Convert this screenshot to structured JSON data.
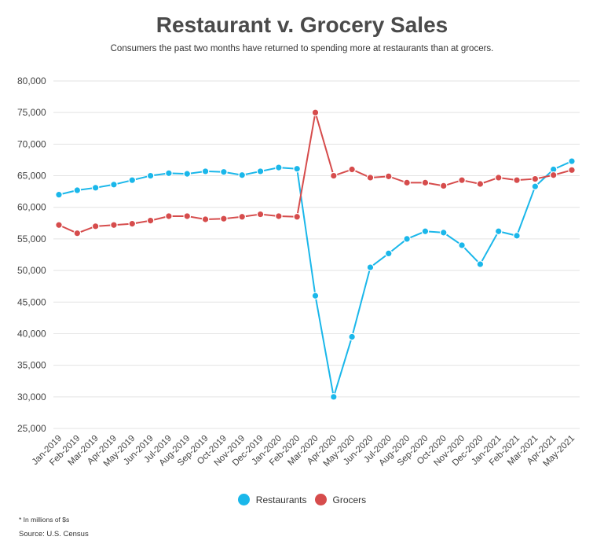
{
  "title": "Restaurant v. Grocery Sales",
  "subtitle": "Consumers the past two months have returned to spending more at restaurants than at grocers.",
  "footnote": "* In millions of $s",
  "source": "Source: U.S. Census",
  "chart_data": {
    "type": "line",
    "title": "Restaurant v. Grocery Sales",
    "xlabel": "",
    "ylabel": "",
    "ylim": [
      25000,
      80000
    ],
    "yticks": [
      25000,
      30000,
      35000,
      40000,
      45000,
      50000,
      55000,
      60000,
      65000,
      70000,
      75000,
      80000
    ],
    "ytick_labels": [
      "25,000",
      "30,000",
      "35,000",
      "40,000",
      "45,000",
      "50,000",
      "55,000",
      "60,000",
      "65,000",
      "70,000",
      "75,000",
      "80,000"
    ],
    "grid": true,
    "legend_position": "bottom",
    "categories": [
      "Jan-2019",
      "Feb-2019",
      "Mar-2019",
      "Apr-2019",
      "May-2019",
      "Jun-2019",
      "Jul-2019",
      "Aug-2019",
      "Sep-2019",
      "Oct-2019",
      "Nov-2019",
      "Dec-2019",
      "Jan-2020",
      "Feb-2020",
      "Mar-2020",
      "Apr-2020",
      "May-2020",
      "Jun-2020",
      "Jul-2020",
      "Aug-2020",
      "Sep-2020",
      "Oct-2020",
      "Nov-2020",
      "Dec-2020",
      "Jan-2021",
      "Feb-2021",
      "Mar-2021",
      "Apr-2021",
      "May-2021"
    ],
    "series": [
      {
        "name": "Restaurants",
        "color": "#1ab7ea",
        "values": [
          62000,
          62700,
          63100,
          63600,
          64300,
          65000,
          65400,
          65300,
          65700,
          65600,
          65100,
          65700,
          66300,
          66100,
          46000,
          30000,
          39500,
          50500,
          52700,
          55000,
          56200,
          56000,
          54000,
          51000,
          56200,
          55500,
          63300,
          66000,
          67300
        ]
      },
      {
        "name": "Grocers",
        "color": "#d64c4c",
        "values": [
          57200,
          55900,
          57000,
          57200,
          57400,
          57900,
          58600,
          58600,
          58100,
          58200,
          58500,
          58900,
          58600,
          58500,
          75000,
          65000,
          66000,
          64700,
          64900,
          63900,
          63900,
          63400,
          64300,
          63700,
          64700,
          64300,
          64500,
          65100,
          65900
        ]
      }
    ]
  }
}
